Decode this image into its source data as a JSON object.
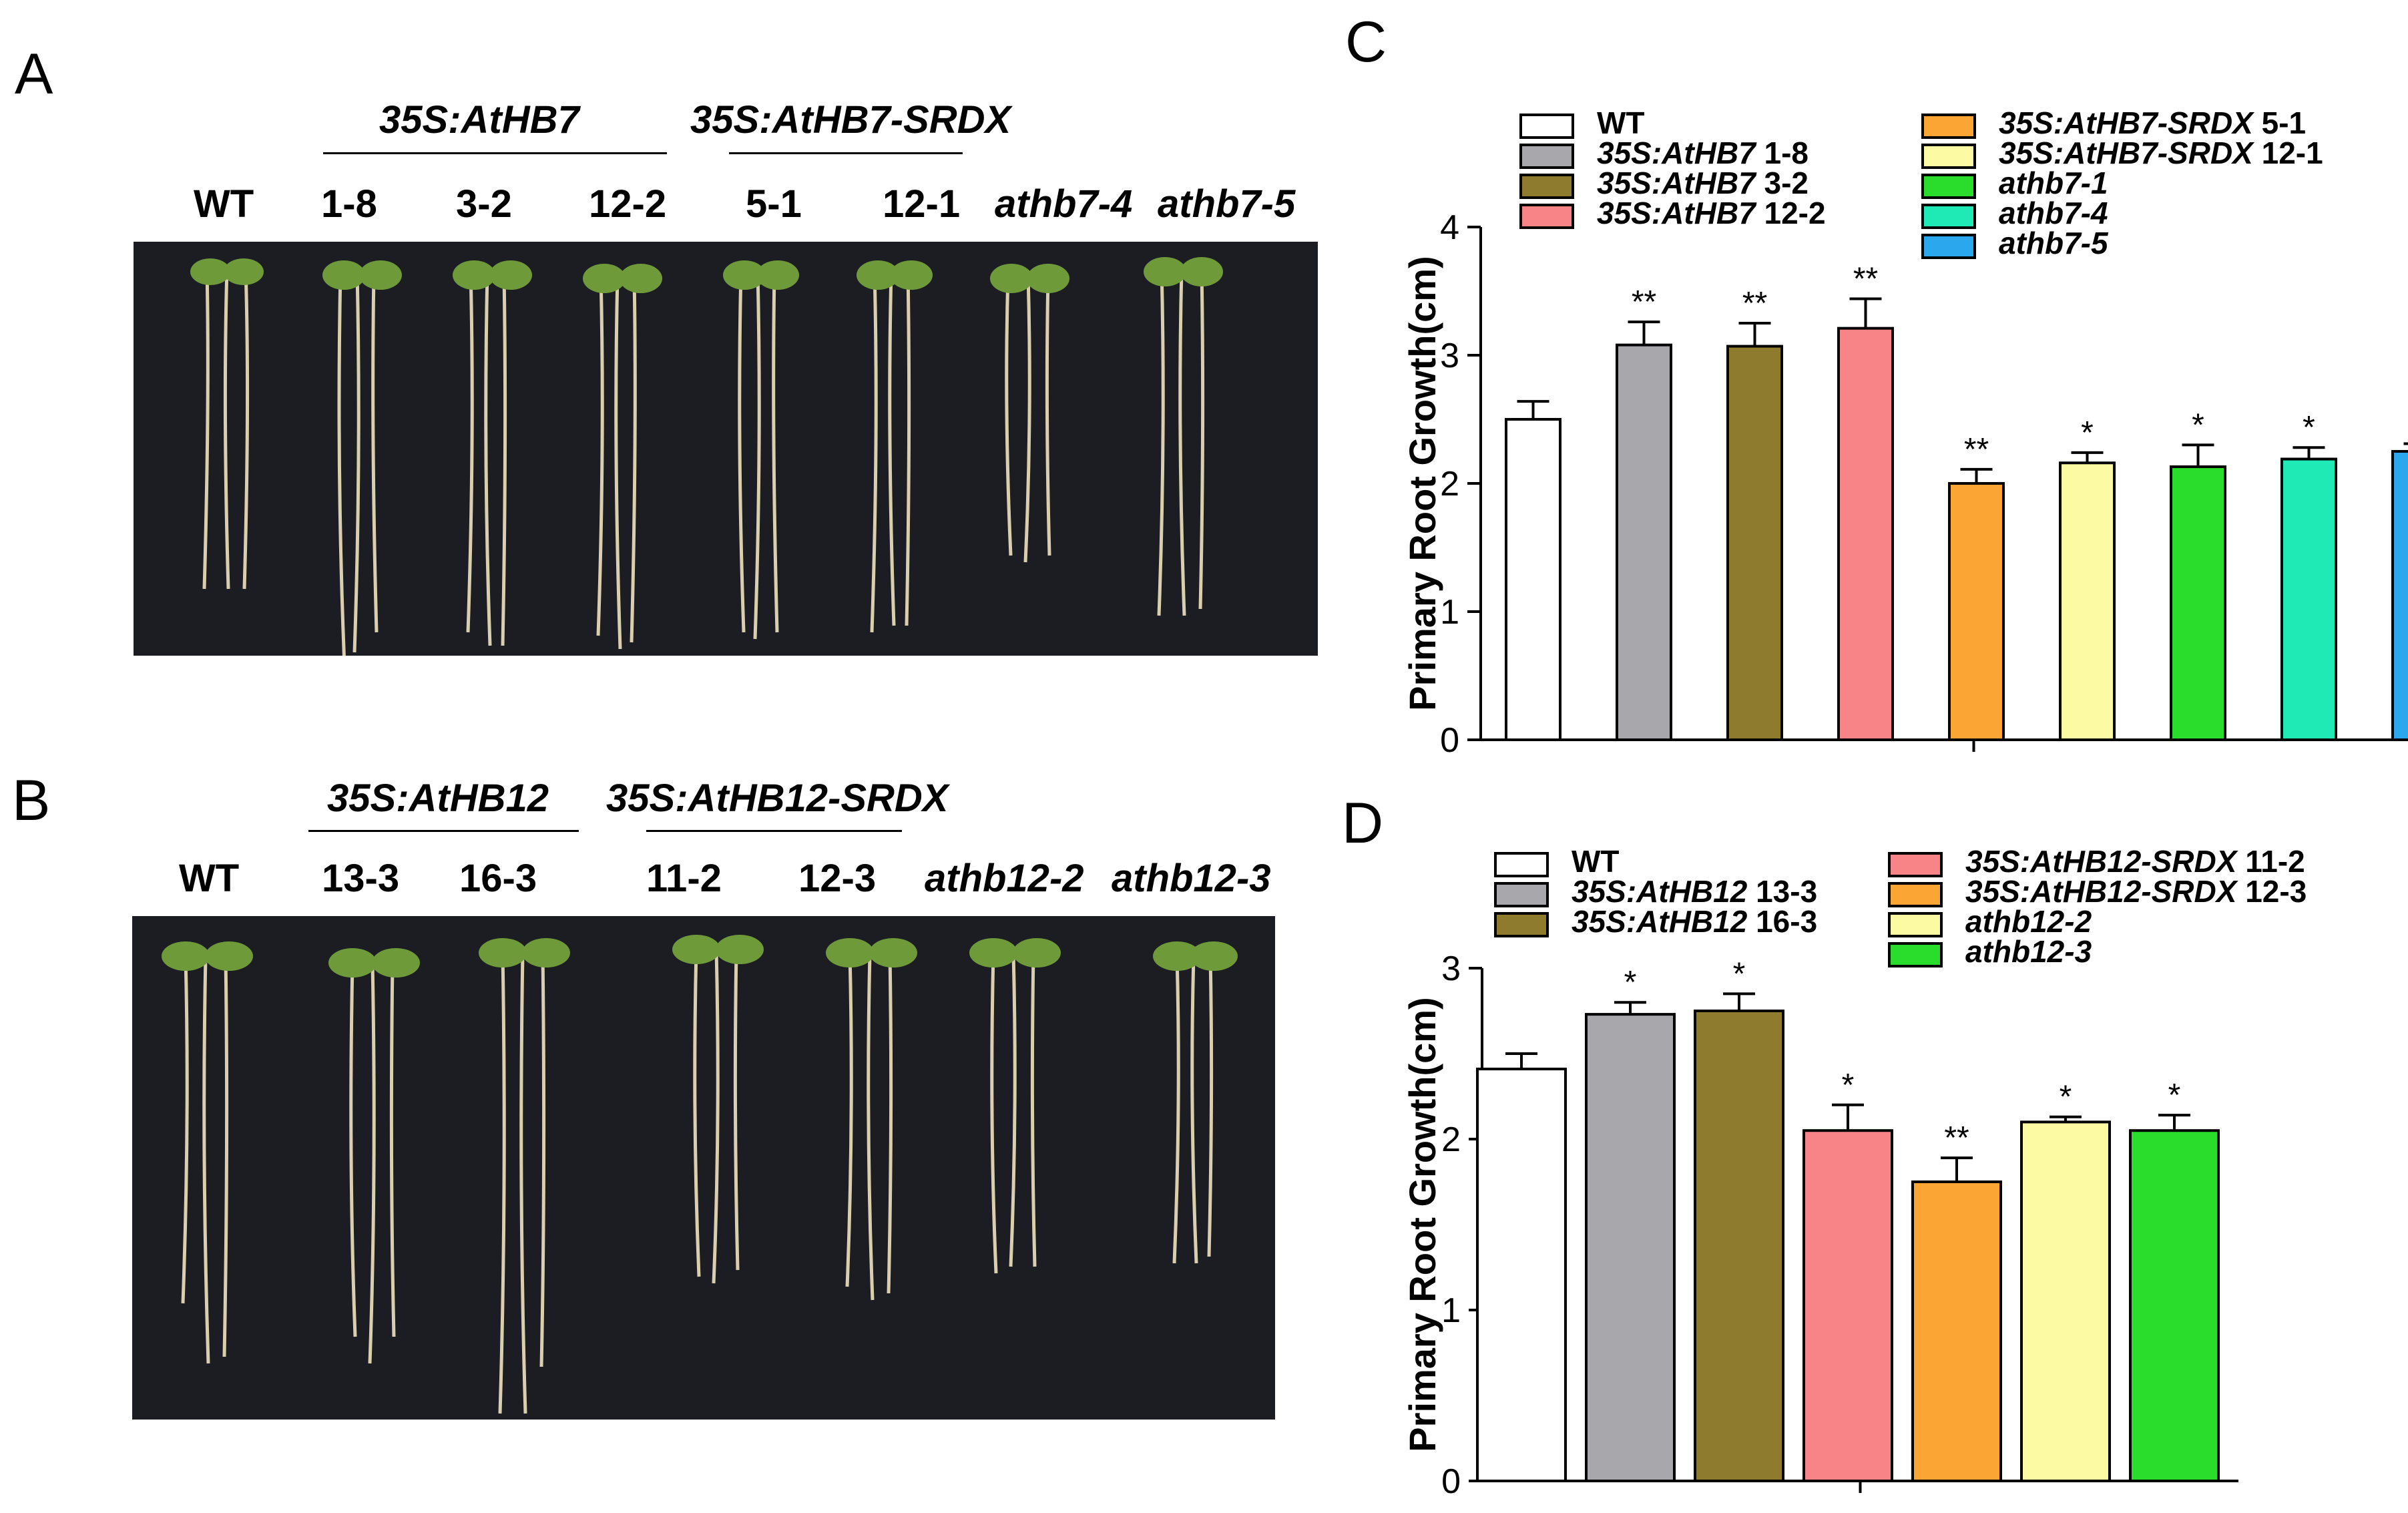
{
  "panels": {
    "A": {
      "letter": "A",
      "group_labels": [
        "35S:AtHB7",
        "35S:AtHB7-SRDX"
      ],
      "lines": [
        "WT",
        "1-8",
        "3-2",
        "12-2",
        "5-1",
        "12-1",
        "athb7-4",
        "athb7-5"
      ]
    },
    "B": {
      "letter": "B",
      "group_labels": [
        "35S:AtHB12",
        "35S:AtHB12-SRDX"
      ],
      "lines": [
        "WT",
        "13-3",
        "16-3",
        "11-2",
        "12-3",
        "athb12-2",
        "athb12-3"
      ]
    }
  },
  "chart_data": [
    {
      "panel": "C",
      "type": "bar",
      "ylabel": "Primary Root Growth(cm)",
      "ylim": [
        0,
        4
      ],
      "yticks": [
        "0",
        "1",
        "2",
        "3",
        "4"
      ],
      "categories": [
        "WT",
        "35S:AtHB7 1-8",
        "35S:AtHB7 3-2",
        "35S:AtHB7 12-2",
        "35S:AtHB7-SRDX 5-1",
        "35S:AtHB7-SRDX 12-1",
        "athb7-1",
        "athb7-4",
        "athb7-5"
      ],
      "values": [
        2.5,
        3.08,
        3.07,
        3.21,
        2.0,
        2.16,
        2.13,
        2.19,
        2.25
      ],
      "errors": [
        0.14,
        0.18,
        0.18,
        0.23,
        0.11,
        0.08,
        0.17,
        0.09,
        0.06
      ],
      "significance": [
        "",
        "**",
        "**",
        "**",
        "**",
        "*",
        "*",
        "*",
        "*"
      ],
      "colors": [
        "#ffffff",
        "#a8a8ac",
        "#8f7b2e",
        "#f88487",
        "#fba535",
        "#fcfba4",
        "#2adc2c",
        "#1fe9b4",
        "#2ba7ee"
      ],
      "legend": [
        {
          "name": "WT",
          "italic": false,
          "suffix": ""
        },
        {
          "name": "35S:AtHB7",
          "italic": true,
          "suffix": "1-8"
        },
        {
          "name": "35S:AtHB7",
          "italic": true,
          "suffix": "3-2"
        },
        {
          "name": "35S:AtHB7",
          "italic": true,
          "suffix": "12-2"
        },
        {
          "name": "35S:AtHB7-SRDX",
          "italic": true,
          "suffix": "5-1"
        },
        {
          "name": "35S:AtHB7-SRDX",
          "italic": true,
          "suffix": "12-1"
        },
        {
          "name": "athb7-1",
          "italic": true,
          "suffix": ""
        },
        {
          "name": "athb7-4",
          "italic": true,
          "suffix": ""
        },
        {
          "name": "athb7-5",
          "italic": true,
          "suffix": ""
        }
      ]
    },
    {
      "panel": "D",
      "type": "bar",
      "ylabel": "Primary Root Growth(cm)",
      "ylim": [
        0,
        3
      ],
      "yticks": [
        "0",
        "1",
        "2",
        "3"
      ],
      "categories": [
        "WT",
        "35S:AtHB12 13-3",
        "35S:AtHB12 16-3",
        "35S:AtHB12-SRDX 11-2",
        "35S:AtHB12-SRDX 12-3",
        "athb12-2",
        "athb12-3"
      ],
      "values": [
        2.41,
        2.73,
        2.75,
        2.05,
        1.75,
        2.1,
        2.05
      ],
      "errors": [
        0.09,
        0.07,
        0.1,
        0.15,
        0.14,
        0.03,
        0.09
      ],
      "significance": [
        "",
        "*",
        "*",
        "*",
        "**",
        "*",
        "*"
      ],
      "colors": [
        "#ffffff",
        "#a8a8ac",
        "#8f7b2e",
        "#f88487",
        "#fba535",
        "#fcfba4",
        "#2adc2c"
      ],
      "legend": [
        {
          "name": "WT",
          "italic": false,
          "suffix": ""
        },
        {
          "name": "35S:AtHB12",
          "italic": true,
          "suffix": "13-3"
        },
        {
          "name": "35S:AtHB12",
          "italic": true,
          "suffix": "16-3"
        },
        {
          "name": "35S:AtHB12-SRDX",
          "italic": true,
          "suffix": "11-2"
        },
        {
          "name": "35S:AtHB12-SRDX",
          "italic": true,
          "suffix": "12-3"
        },
        {
          "name": "athb12-2",
          "italic": true,
          "suffix": ""
        },
        {
          "name": "athb12-3",
          "italic": true,
          "suffix": ""
        }
      ]
    }
  ]
}
